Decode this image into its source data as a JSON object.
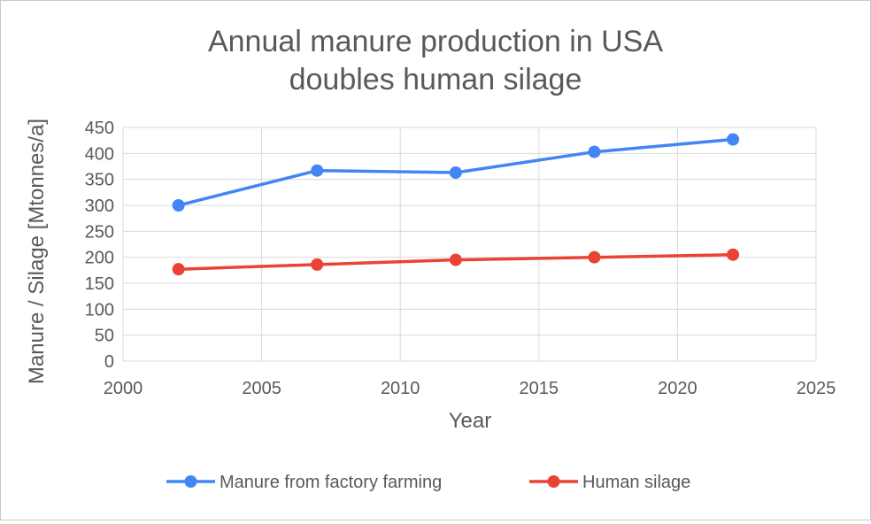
{
  "chart_data": {
    "type": "scatter",
    "title": [
      "Annual manure production in USA",
      "doubles human silage"
    ],
    "xlabel": "Year",
    "ylabel": "Manure / Silage [Mtonnes/a]",
    "xlim": [
      2000,
      2025
    ],
    "ylim": [
      0,
      450
    ],
    "x_ticks": [
      2000,
      2005,
      2010,
      2015,
      2020,
      2025
    ],
    "y_ticks": [
      0,
      50,
      100,
      150,
      200,
      250,
      300,
      350,
      400,
      450
    ],
    "grid": true,
    "legend_position": "bottom",
    "series": [
      {
        "name": "Manure from factory farming",
        "color": "#4285f4",
        "x": [
          2002,
          2007,
          2012,
          2017,
          2022
        ],
        "y": [
          300,
          367,
          363,
          403,
          427
        ]
      },
      {
        "name": "Human silage",
        "color": "#ea4335",
        "x": [
          2002,
          2007,
          2012,
          2017,
          2022
        ],
        "y": [
          177,
          186,
          195,
          200,
          205
        ]
      }
    ]
  }
}
